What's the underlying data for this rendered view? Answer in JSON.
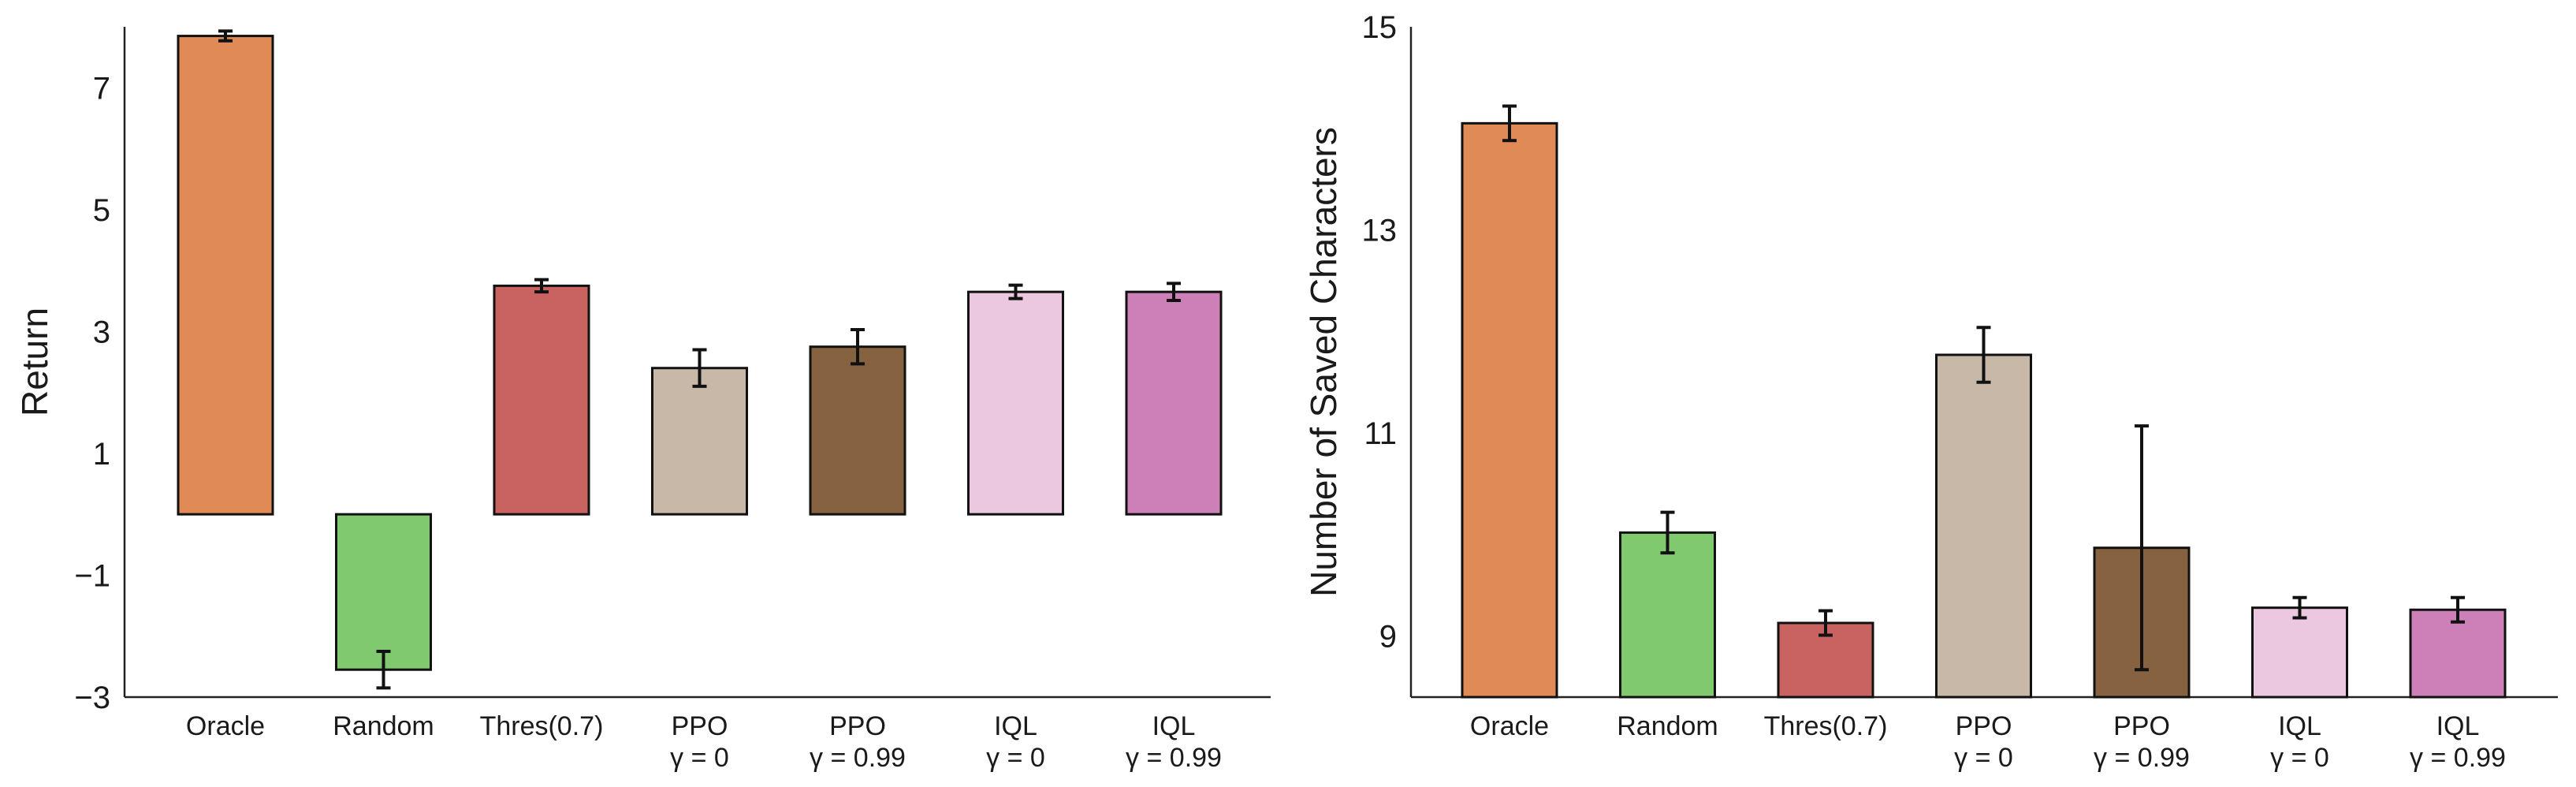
{
  "chart_data": [
    {
      "type": "bar",
      "ylabel": "Return",
      "xlabel": "",
      "title": "",
      "ylim": [
        -3,
        8
      ],
      "yticks": [
        -3,
        -1,
        1,
        3,
        5,
        7
      ],
      "ytick_labels": [
        "−3",
        "−1",
        "1",
        "3",
        "5",
        "7"
      ],
      "categories": [
        {
          "line1": "Oracle",
          "line2": ""
        },
        {
          "line1": "Random",
          "line2": ""
        },
        {
          "line1": "Thres(0.7)",
          "line2": ""
        },
        {
          "line1": "PPO",
          "line2": "γ = 0"
        },
        {
          "line1": "PPO",
          "line2": "γ = 0.99"
        },
        {
          "line1": "IQL",
          "line2": "γ = 0"
        },
        {
          "line1": "IQL",
          "line2": "γ = 0.99"
        }
      ],
      "values": [
        7.85,
        -2.55,
        3.75,
        2.4,
        2.75,
        3.65,
        3.65
      ],
      "errors": [
        0.08,
        0.3,
        0.1,
        0.3,
        0.28,
        0.11,
        0.14
      ],
      "colors": [
        "#e08a55",
        "#81c96e",
        "#c96361",
        "#c8b8a8",
        "#866240",
        "#ebc7e0",
        "#cd80b8"
      ]
    },
    {
      "type": "bar",
      "ylabel": "Number of Saved Characters",
      "xlabel": "",
      "title": "",
      "ylim": [
        8.4,
        15
      ],
      "yticks": [
        9,
        11,
        13,
        15
      ],
      "ytick_labels": [
        "9",
        "11",
        "13",
        "15"
      ],
      "categories": [
        {
          "line1": "Oracle",
          "line2": ""
        },
        {
          "line1": "Random",
          "line2": ""
        },
        {
          "line1": "Thres(0.7)",
          "line2": ""
        },
        {
          "line1": "PPO",
          "line2": "γ = 0"
        },
        {
          "line1": "PPO",
          "line2": "γ = 0.99"
        },
        {
          "line1": "IQL",
          "line2": "γ = 0"
        },
        {
          "line1": "IQL",
          "line2": "γ = 0.99"
        }
      ],
      "values": [
        14.05,
        10.02,
        9.13,
        11.77,
        9.87,
        9.28,
        9.26
      ],
      "errors": [
        0.17,
        0.2,
        0.12,
        0.27,
        1.2,
        0.1,
        0.12
      ],
      "colors": [
        "#e08a55",
        "#81c96e",
        "#c96361",
        "#c8b8a8",
        "#866240",
        "#ebc7e0",
        "#cd80b8"
      ]
    }
  ]
}
